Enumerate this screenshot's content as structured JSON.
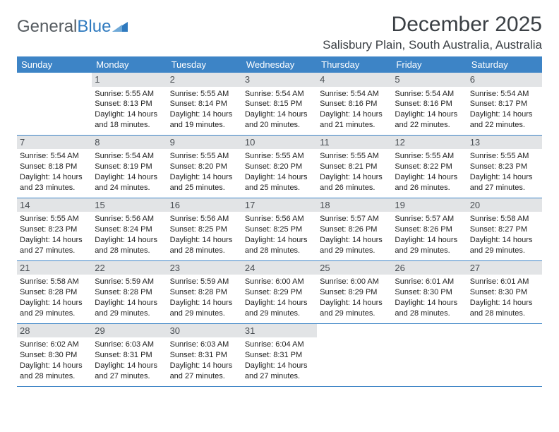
{
  "logo": {
    "text1": "General",
    "text2": "Blue"
  },
  "header": {
    "title": "December 2025",
    "location": "Salisbury Plain, South Australia, Australia"
  },
  "colors": {
    "header_bg": "#3d84c6",
    "header_text": "#ffffff",
    "daynum_bg": "#e2e4e6",
    "row_border": "#3d84c6",
    "logo_gray": "#555b60",
    "logo_blue": "#2f7abf"
  },
  "weekdays": [
    "Sunday",
    "Monday",
    "Tuesday",
    "Wednesday",
    "Thursday",
    "Friday",
    "Saturday"
  ],
  "start_offset": 1,
  "days": [
    {
      "n": "1",
      "sr": "5:55 AM",
      "ss": "8:13 PM",
      "dh": "14",
      "dm": "18"
    },
    {
      "n": "2",
      "sr": "5:55 AM",
      "ss": "8:14 PM",
      "dh": "14",
      "dm": "19"
    },
    {
      "n": "3",
      "sr": "5:54 AM",
      "ss": "8:15 PM",
      "dh": "14",
      "dm": "20"
    },
    {
      "n": "4",
      "sr": "5:54 AM",
      "ss": "8:16 PM",
      "dh": "14",
      "dm": "21"
    },
    {
      "n": "5",
      "sr": "5:54 AM",
      "ss": "8:16 PM",
      "dh": "14",
      "dm": "22"
    },
    {
      "n": "6",
      "sr": "5:54 AM",
      "ss": "8:17 PM",
      "dh": "14",
      "dm": "22"
    },
    {
      "n": "7",
      "sr": "5:54 AM",
      "ss": "8:18 PM",
      "dh": "14",
      "dm": "23"
    },
    {
      "n": "8",
      "sr": "5:54 AM",
      "ss": "8:19 PM",
      "dh": "14",
      "dm": "24"
    },
    {
      "n": "9",
      "sr": "5:55 AM",
      "ss": "8:20 PM",
      "dh": "14",
      "dm": "25"
    },
    {
      "n": "10",
      "sr": "5:55 AM",
      "ss": "8:20 PM",
      "dh": "14",
      "dm": "25"
    },
    {
      "n": "11",
      "sr": "5:55 AM",
      "ss": "8:21 PM",
      "dh": "14",
      "dm": "26"
    },
    {
      "n": "12",
      "sr": "5:55 AM",
      "ss": "8:22 PM",
      "dh": "14",
      "dm": "26"
    },
    {
      "n": "13",
      "sr": "5:55 AM",
      "ss": "8:23 PM",
      "dh": "14",
      "dm": "27"
    },
    {
      "n": "14",
      "sr": "5:55 AM",
      "ss": "8:23 PM",
      "dh": "14",
      "dm": "27"
    },
    {
      "n": "15",
      "sr": "5:56 AM",
      "ss": "8:24 PM",
      "dh": "14",
      "dm": "28"
    },
    {
      "n": "16",
      "sr": "5:56 AM",
      "ss": "8:25 PM",
      "dh": "14",
      "dm": "28"
    },
    {
      "n": "17",
      "sr": "5:56 AM",
      "ss": "8:25 PM",
      "dh": "14",
      "dm": "28"
    },
    {
      "n": "18",
      "sr": "5:57 AM",
      "ss": "8:26 PM",
      "dh": "14",
      "dm": "29"
    },
    {
      "n": "19",
      "sr": "5:57 AM",
      "ss": "8:26 PM",
      "dh": "14",
      "dm": "29"
    },
    {
      "n": "20",
      "sr": "5:58 AM",
      "ss": "8:27 PM",
      "dh": "14",
      "dm": "29"
    },
    {
      "n": "21",
      "sr": "5:58 AM",
      "ss": "8:28 PM",
      "dh": "14",
      "dm": "29"
    },
    {
      "n": "22",
      "sr": "5:59 AM",
      "ss": "8:28 PM",
      "dh": "14",
      "dm": "29"
    },
    {
      "n": "23",
      "sr": "5:59 AM",
      "ss": "8:28 PM",
      "dh": "14",
      "dm": "29"
    },
    {
      "n": "24",
      "sr": "6:00 AM",
      "ss": "8:29 PM",
      "dh": "14",
      "dm": "29"
    },
    {
      "n": "25",
      "sr": "6:00 AM",
      "ss": "8:29 PM",
      "dh": "14",
      "dm": "29"
    },
    {
      "n": "26",
      "sr": "6:01 AM",
      "ss": "8:30 PM",
      "dh": "14",
      "dm": "28"
    },
    {
      "n": "27",
      "sr": "6:01 AM",
      "ss": "8:30 PM",
      "dh": "14",
      "dm": "28"
    },
    {
      "n": "28",
      "sr": "6:02 AM",
      "ss": "8:30 PM",
      "dh": "14",
      "dm": "28"
    },
    {
      "n": "29",
      "sr": "6:03 AM",
      "ss": "8:31 PM",
      "dh": "14",
      "dm": "27"
    },
    {
      "n": "30",
      "sr": "6:03 AM",
      "ss": "8:31 PM",
      "dh": "14",
      "dm": "27"
    },
    {
      "n": "31",
      "sr": "6:04 AM",
      "ss": "8:31 PM",
      "dh": "14",
      "dm": "27"
    }
  ],
  "labels": {
    "sunrise": "Sunrise: ",
    "sunset": "Sunset: ",
    "daylight1": "Daylight: ",
    "hours_word": " hours",
    "and_word": "and ",
    "minutes_word": " minutes."
  }
}
